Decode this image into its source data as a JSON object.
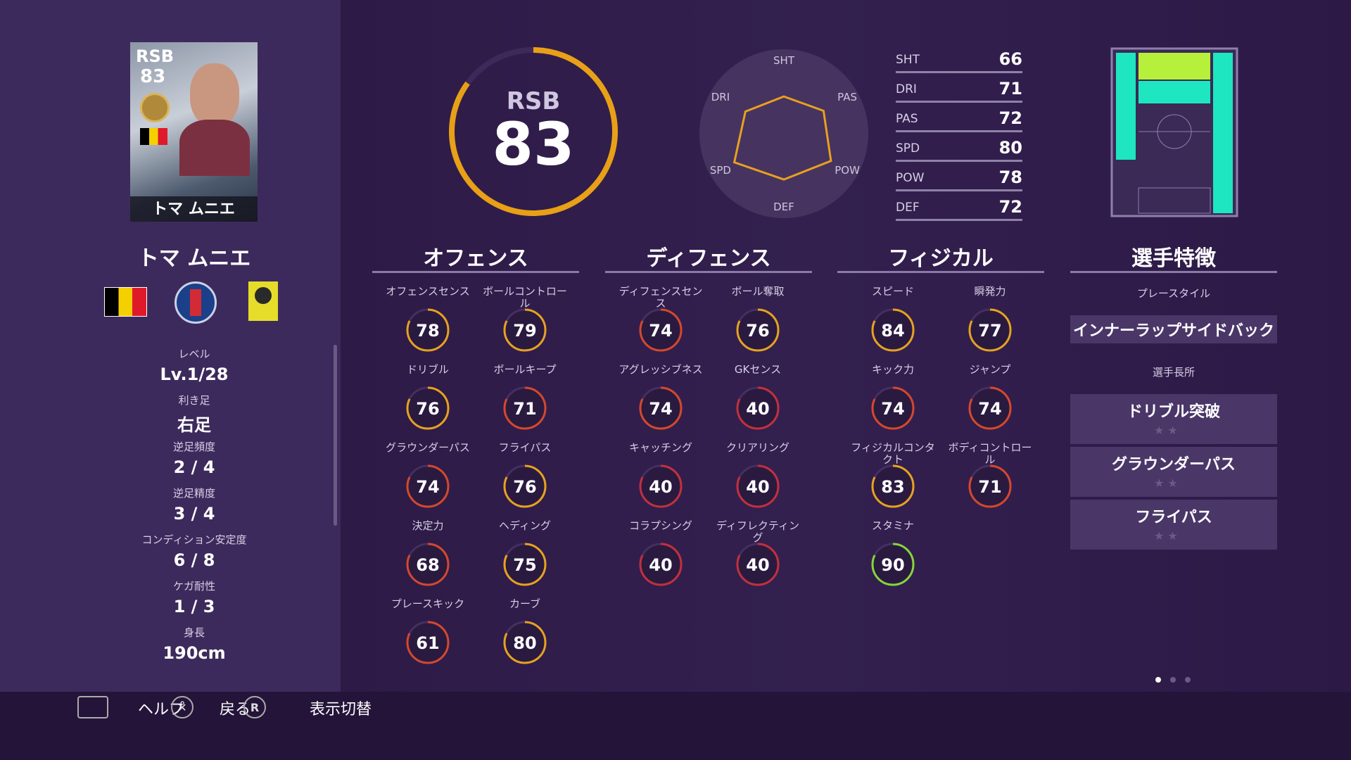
{
  "player": {
    "card_position": "RSB",
    "card_rating": "83",
    "card_name": "トマ ムニエ",
    "name": "トマ ムニエ"
  },
  "info": [
    {
      "label": "レベル",
      "value": "Lv.1/28"
    },
    {
      "label": "利き足",
      "value": "右足"
    },
    {
      "label": "逆足頻度",
      "value": "2 / 4"
    },
    {
      "label": "逆足精度",
      "value": "3 / 4"
    },
    {
      "label": "コンディション安定度",
      "value": "6 / 8"
    },
    {
      "label": "ケガ耐性",
      "value": "1 / 3"
    },
    {
      "label": "身長",
      "value": "190cm"
    }
  ],
  "overall": {
    "position": "RSB",
    "rating": 83
  },
  "abilities": {
    "labels": [
      "SHT",
      "DRI",
      "PAS",
      "SPD",
      "POW",
      "DEF"
    ],
    "values": [
      66,
      71,
      72,
      80,
      78,
      72
    ],
    "rlim": [
      40,
      99
    ],
    "color": "#e8a020"
  },
  "sections": [
    {
      "title": "オフェンス",
      "stats": [
        {
          "label": "オフェンスセンス",
          "value": 78,
          "color": "#e6a21f"
        },
        {
          "label": "ボールコントロール",
          "value": 79,
          "color": "#e6a21f"
        },
        {
          "label": "ドリブル",
          "value": 76,
          "color": "#e6a21f"
        },
        {
          "label": "ボールキープ",
          "value": 71,
          "color": "#d4482c"
        },
        {
          "label": "グラウンダーパス",
          "value": 74,
          "color": "#d4482c"
        },
        {
          "label": "フライパス",
          "value": 76,
          "color": "#e6a21f"
        },
        {
          "label": "決定力",
          "value": 68,
          "color": "#d4482c"
        },
        {
          "label": "ヘディング",
          "value": 75,
          "color": "#e6a21f"
        },
        {
          "label": "プレースキック",
          "value": 61,
          "color": "#d4482c"
        },
        {
          "label": "カーブ",
          "value": 80,
          "color": "#e6a21f"
        }
      ]
    },
    {
      "title": "ディフェンス",
      "stats": [
        {
          "label": "ディフェンスセンス",
          "value": 74,
          "color": "#d4482c"
        },
        {
          "label": "ボール奪取",
          "value": 76,
          "color": "#e6a21f"
        },
        {
          "label": "アグレッシブネス",
          "value": 74,
          "color": "#d4482c"
        },
        {
          "label": "GKセンス",
          "value": 40,
          "color": "#c2303c"
        },
        {
          "label": "キャッチング",
          "value": 40,
          "color": "#c2303c"
        },
        {
          "label": "クリアリング",
          "value": 40,
          "color": "#c2303c"
        },
        {
          "label": "コラプシング",
          "value": 40,
          "color": "#c2303c"
        },
        {
          "label": "ディフレクティング",
          "value": 40,
          "color": "#c2303c"
        }
      ]
    },
    {
      "title": "フィジカル",
      "stats": [
        {
          "label": "スピード",
          "value": 84,
          "color": "#e6a21f"
        },
        {
          "label": "瞬発力",
          "value": 77,
          "color": "#e6a21f"
        },
        {
          "label": "キック力",
          "value": 74,
          "color": "#d4482c"
        },
        {
          "label": "ジャンプ",
          "value": 74,
          "color": "#d4482c"
        },
        {
          "label": "フィジカルコンタクト",
          "value": 83,
          "color": "#e6a21f"
        },
        {
          "label": "ボディコントロール",
          "value": 71,
          "color": "#d4482c"
        },
        {
          "label": "スタミナ",
          "value": 90,
          "color": "#86d43a"
        }
      ]
    }
  ],
  "traits": {
    "title": "選手特徴",
    "playstyle_label": "プレースタイル",
    "playstyle": "インナーラップサイドバック",
    "skills_label": "選手長所",
    "skills": [
      "ドリブル突破",
      "グラウンダーパス",
      "フライパス"
    ]
  },
  "hints": [
    {
      "label": "ヘルプ"
    },
    {
      "label": "戻る"
    },
    {
      "key": "R",
      "label": "表示切替"
    }
  ]
}
